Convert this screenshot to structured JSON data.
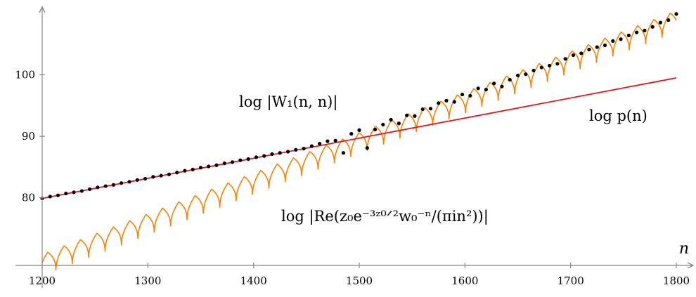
{
  "chart_data": {
    "type": "line",
    "title": "",
    "xlabel": "n",
    "ylabel": "",
    "xlim": [
      1200,
      1800
    ],
    "ylim": [
      69,
      110
    ],
    "x_ticks": [
      {
        "value": 1200,
        "label": "1200"
      },
      {
        "value": 1300,
        "label": "1300"
      },
      {
        "value": 1400,
        "label": "1400"
      },
      {
        "value": 1500,
        "label": "1500"
      },
      {
        "value": 1600,
        "label": "1600"
      },
      {
        "value": 1700,
        "label": "1700"
      },
      {
        "value": 1800,
        "label": "1800"
      }
    ],
    "y_ticks": [
      {
        "value": 80,
        "label": "80"
      },
      {
        "value": 90,
        "label": "90"
      },
      {
        "value": 100,
        "label": "100"
      }
    ],
    "series": [
      {
        "name": "log p(n)",
        "kind": "line",
        "color": "#e31a1c",
        "x": [
          1200,
          1800
        ],
        "y": [
          79.9,
          99.5
        ]
      },
      {
        "name": "log |Re(z0 e^{-3 z0/2} w0^{-n} / (pi i n^2))|",
        "kind": "oscillating-envelope",
        "color": "#ff8000",
        "envelope_x": [
          1200,
          1800
        ],
        "envelope_y": [
          70.8,
          110.4
        ],
        "dip_period": 15.5,
        "dip_depth": 3.4,
        "first_dip": 1213
      },
      {
        "name": "log |W1(n,n)|",
        "kind": "scatter",
        "color": "#000000",
        "x": [
          1200,
          1207.5,
          1215,
          1222.5,
          1230,
          1237.5,
          1245,
          1252.5,
          1260,
          1267.5,
          1275,
          1282.5,
          1290,
          1297.5,
          1305,
          1312.5,
          1320,
          1327.5,
          1335,
          1342.5,
          1350,
          1357.5,
          1365,
          1372.5,
          1380,
          1387.5,
          1395,
          1402.5,
          1410,
          1417.5,
          1425,
          1432.5,
          1440,
          1447.5,
          1455,
          1462.5,
          1470,
          1477.5,
          1485,
          1492.5,
          1500,
          1507.5,
          1515,
          1522.5,
          1530,
          1537.5,
          1545,
          1552.5,
          1560,
          1567.5,
          1575,
          1582.5,
          1590,
          1597.5,
          1605,
          1612.5,
          1620,
          1627.5,
          1635,
          1642.5,
          1650,
          1657.5,
          1665,
          1672.5,
          1680,
          1687.5,
          1695,
          1702.5,
          1710,
          1717.5,
          1725,
          1732.5,
          1740,
          1747.5,
          1755,
          1762.5,
          1770,
          1777.5,
          1785,
          1792.5,
          1800
        ],
        "y": [
          79.9,
          80.2,
          80.4,
          80.7,
          80.9,
          81.1,
          81.4,
          81.7,
          81.9,
          82.1,
          82.4,
          82.6,
          82.9,
          83.1,
          83.4,
          83.6,
          83.8,
          84.1,
          84.4,
          84.6,
          84.9,
          85.1,
          85.3,
          85.6,
          85.8,
          86.1,
          86.3,
          86.6,
          86.8,
          87.1,
          87.3,
          87.5,
          87.8,
          88.0,
          88.4,
          88.8,
          89.2,
          89.3,
          87.3,
          90.4,
          91.0,
          88.1,
          91.1,
          91.9,
          92.7,
          92.1,
          93.4,
          93.3,
          94.4,
          94.5,
          95.4,
          95.8,
          95.6,
          96.8,
          96.6,
          97.8,
          97.6,
          98.6,
          98.1,
          99.2,
          99.9,
          100.1,
          100.7,
          101.2,
          101.5,
          101.8,
          102.6,
          103.2,
          103.5,
          104.1,
          104.5,
          104.8,
          105.5,
          105.8,
          106.4,
          106.9,
          107.2,
          107.8,
          108.5,
          108.9,
          109.9
        ]
      }
    ],
    "annotations": [
      {
        "text": "log |W₁(n, n)|",
        "target": "scatter",
        "anchor": [
          1387,
          95.3
        ]
      },
      {
        "text": "log p(n)",
        "target": "red-line",
        "anchor": [
          1768,
          92.3
        ]
      },
      {
        "text": "log |Re(z₀e⁻³ᶻ⁰ᐟ²w₀⁻ⁿ/(πin²))|",
        "target": "orange-curve",
        "anchor": [
          1584,
          77.2
        ]
      }
    ],
    "grid": false,
    "legend": "none (inline labels)"
  }
}
